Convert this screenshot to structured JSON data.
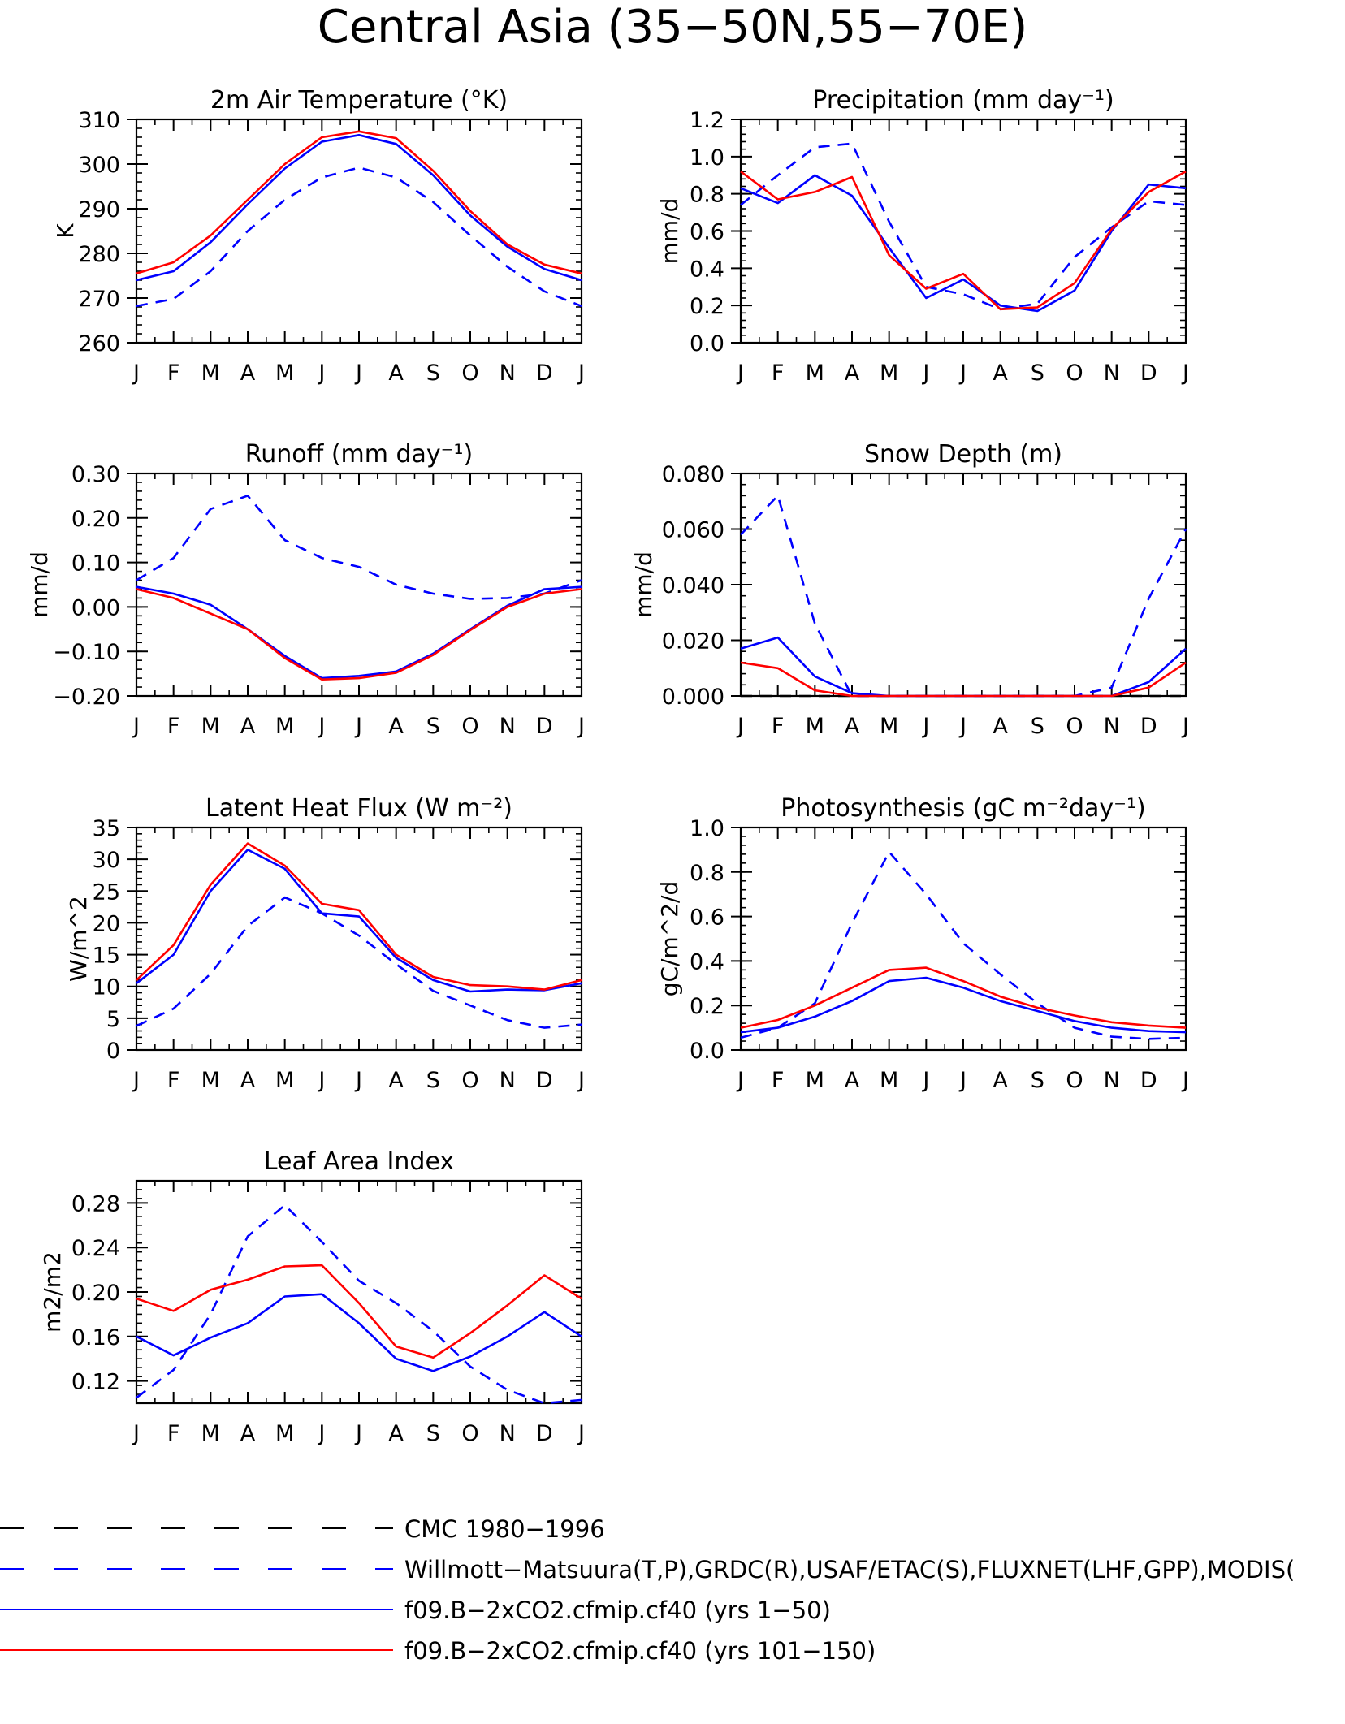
{
  "page": {
    "title": "Central Asia (35−50N,55−70E)"
  },
  "colors": {
    "axis": "#000000",
    "obs": "#0000ff",
    "sim1": "#0000ff",
    "sim2": "#ff0000",
    "cmc": "#000000"
  },
  "legend": {
    "entries": [
      {
        "label": "CMC 1980−1996",
        "color": "#000000",
        "dashed": true
      },
      {
        "label": "Willmott−Matsuura(T,P),GRDC(R),USAF/ETAC(S),FLUXNET(LHF,GPP),MODIS(",
        "color": "#0000ff",
        "dashed": true
      },
      {
        "label": "f09.B−2xCO2.cfmip.cf40 (yrs 1−50)",
        "color": "#0000ff",
        "dashed": false
      },
      {
        "label": "f09.B−2xCO2.cfmip.cf40 (yrs 101−150)",
        "color": "#ff0000",
        "dashed": false
      }
    ]
  },
  "chart_data": [
    {
      "id": "temp",
      "type": "line",
      "title": "2m Air Temperature (°K)",
      "ylabel": "K",
      "categories": [
        "J",
        "F",
        "M",
        "A",
        "M",
        "J",
        "J",
        "A",
        "S",
        "O",
        "N",
        "D",
        "J"
      ],
      "ylim": [
        260,
        310
      ],
      "yticks": [
        260,
        270,
        280,
        290,
        300,
        310
      ],
      "yticklabels": [
        "260",
        "270",
        "280",
        "290",
        "300",
        "310"
      ],
      "series": [
        {
          "key": "obs",
          "dashed": true,
          "color": "#0000ff",
          "values": [
            268.2,
            269.8,
            276,
            285,
            292,
            297,
            299.2,
            297,
            291.5,
            284,
            277,
            271.5,
            268.2
          ]
        },
        {
          "key": "sim1",
          "dashed": false,
          "color": "#0000ff",
          "values": [
            274,
            276,
            282.5,
            291,
            299,
            305,
            306.5,
            304.5,
            297.5,
            288.5,
            281.5,
            276.5,
            274
          ]
        },
        {
          "key": "sim2",
          "dashed": false,
          "color": "#ff0000",
          "values": [
            275.5,
            278,
            284,
            292,
            300,
            306,
            307.3,
            305.8,
            298.5,
            289.5,
            282,
            277.5,
            275.5
          ]
        }
      ]
    },
    {
      "id": "precip",
      "type": "line",
      "title": "Precipitation (mm day⁻¹)",
      "ylabel": "mm/d",
      "categories": [
        "J",
        "F",
        "M",
        "A",
        "M",
        "J",
        "J",
        "A",
        "S",
        "O",
        "N",
        "D",
        "J"
      ],
      "ylim": [
        0,
        1.2
      ],
      "yticks": [
        0,
        0.2,
        0.4,
        0.6,
        0.8,
        1.0,
        1.2
      ],
      "yticklabels": [
        "0.0",
        "0.2",
        "0.4",
        "0.6",
        "0.8",
        "1.0",
        "1.2"
      ],
      "series": [
        {
          "key": "obs",
          "dashed": true,
          "color": "#0000ff",
          "values": [
            0.74,
            0.9,
            1.05,
            1.07,
            0.65,
            0.3,
            0.26,
            0.18,
            0.21,
            0.46,
            0.62,
            0.76,
            0.74
          ]
        },
        {
          "key": "sim1",
          "dashed": false,
          "color": "#0000ff",
          "values": [
            0.83,
            0.75,
            0.9,
            0.79,
            0.51,
            0.24,
            0.34,
            0.2,
            0.17,
            0.28,
            0.6,
            0.85,
            0.83
          ]
        },
        {
          "key": "sim2",
          "dashed": false,
          "color": "#ff0000",
          "values": [
            0.92,
            0.77,
            0.81,
            0.89,
            0.47,
            0.29,
            0.37,
            0.18,
            0.19,
            0.32,
            0.61,
            0.81,
            0.92
          ]
        }
      ]
    },
    {
      "id": "runoff",
      "type": "line",
      "title": "Runoff (mm day⁻¹)",
      "ylabel": "mm/d",
      "categories": [
        "J",
        "F",
        "M",
        "A",
        "M",
        "J",
        "J",
        "A",
        "S",
        "O",
        "N",
        "D",
        "J"
      ],
      "ylim": [
        -0.2,
        0.3
      ],
      "yticks": [
        -0.2,
        -0.1,
        0,
        0.1,
        0.2,
        0.3
      ],
      "yticklabels": [
        "−0.20",
        "−0.10",
        "0.00",
        "0.10",
        "0.20",
        "0.30"
      ],
      "series": [
        {
          "key": "obs",
          "dashed": true,
          "color": "#0000ff",
          "values": [
            0.06,
            0.11,
            0.22,
            0.25,
            0.15,
            0.11,
            0.09,
            0.05,
            0.03,
            0.018,
            0.02,
            0.03,
            0.06
          ]
        },
        {
          "key": "sim1",
          "dashed": false,
          "color": "#0000ff",
          "values": [
            0.045,
            0.03,
            0.005,
            -0.05,
            -0.11,
            -0.16,
            -0.155,
            -0.145,
            -0.105,
            -0.05,
            0.003,
            0.04,
            0.045
          ]
        },
        {
          "key": "sim2",
          "dashed": false,
          "color": "#ff0000",
          "values": [
            0.04,
            0.02,
            -0.015,
            -0.05,
            -0.115,
            -0.163,
            -0.16,
            -0.148,
            -0.108,
            -0.052,
            0.0,
            0.03,
            0.04
          ]
        }
      ]
    },
    {
      "id": "snow",
      "type": "line",
      "title": "Snow Depth (m)",
      "ylabel": "mm/d",
      "categories": [
        "J",
        "F",
        "M",
        "A",
        "M",
        "J",
        "J",
        "A",
        "S",
        "O",
        "N",
        "D",
        "J"
      ],
      "ylim": [
        0,
        0.08
      ],
      "yticks": [
        0,
        0.02,
        0.04,
        0.06,
        0.08
      ],
      "yticklabels": [
        "0.000",
        "0.020",
        "0.040",
        "0.060",
        "0.080"
      ],
      "series": [
        {
          "key": "cmc",
          "dashed": true,
          "color": "#000000",
          "values": [
            0,
            0,
            0,
            0,
            0,
            0,
            0,
            0,
            0,
            0,
            0,
            0,
            0
          ]
        },
        {
          "key": "obs",
          "dashed": true,
          "color": "#0000ff",
          "values": [
            0.058,
            0.072,
            0.026,
            0.0,
            0,
            0,
            0,
            0,
            0,
            0,
            0.003,
            0.035,
            0.06
          ]
        },
        {
          "key": "sim1",
          "dashed": false,
          "color": "#0000ff",
          "values": [
            0.017,
            0.021,
            0.007,
            0.001,
            0,
            0,
            0,
            0,
            0,
            0,
            0.0,
            0.005,
            0.017
          ]
        },
        {
          "key": "sim2",
          "dashed": false,
          "color": "#ff0000",
          "values": [
            0.012,
            0.01,
            0.002,
            0.0,
            0,
            0,
            0,
            0,
            0,
            0,
            0.0,
            0.003,
            0.012
          ]
        }
      ]
    },
    {
      "id": "lhf",
      "type": "line",
      "title": "Latent Heat Flux (W m⁻²)",
      "ylabel": "W/m^2",
      "categories": [
        "J",
        "F",
        "M",
        "A",
        "M",
        "J",
        "J",
        "A",
        "S",
        "O",
        "N",
        "D",
        "J"
      ],
      "ylim": [
        0,
        35
      ],
      "yticks": [
        0,
        5,
        10,
        15,
        20,
        25,
        30,
        35
      ],
      "yticklabels": [
        "0",
        "5",
        "10",
        "15",
        "20",
        "25",
        "30",
        "35"
      ],
      "series": [
        {
          "key": "obs",
          "dashed": true,
          "color": "#0000ff",
          "values": [
            3.8,
            6.5,
            12,
            19.5,
            24,
            21.5,
            18,
            13.5,
            9.3,
            7,
            4.7,
            3.5,
            4
          ]
        },
        {
          "key": "sim1",
          "dashed": false,
          "color": "#0000ff",
          "values": [
            10.5,
            15,
            25,
            31.5,
            28.5,
            21.5,
            21,
            14.5,
            11,
            9.2,
            9.5,
            9.4,
            10.5
          ]
        },
        {
          "key": "sim2",
          "dashed": false,
          "color": "#ff0000",
          "values": [
            11,
            16.5,
            26,
            32.5,
            29,
            23,
            22,
            15,
            11.5,
            10.2,
            10,
            9.5,
            11
          ]
        }
      ]
    },
    {
      "id": "gpp",
      "type": "line",
      "title": "Photosynthesis (gC m⁻²day⁻¹)",
      "ylabel": "gC/m^2/d",
      "categories": [
        "J",
        "F",
        "M",
        "A",
        "M",
        "J",
        "J",
        "A",
        "S",
        "O",
        "N",
        "D",
        "J"
      ],
      "ylim": [
        0,
        1.0
      ],
      "yticks": [
        0,
        0.2,
        0.4,
        0.6,
        0.8,
        1.0
      ],
      "yticklabels": [
        "0.0",
        "0.2",
        "0.4",
        "0.6",
        "0.8",
        "1.0"
      ],
      "series": [
        {
          "key": "obs",
          "dashed": true,
          "color": "#0000ff",
          "values": [
            0.055,
            0.1,
            0.21,
            0.57,
            0.89,
            0.7,
            0.48,
            0.34,
            0.21,
            0.1,
            0.06,
            0.05,
            0.055
          ]
        },
        {
          "key": "sim1",
          "dashed": false,
          "color": "#0000ff",
          "values": [
            0.08,
            0.1,
            0.15,
            0.22,
            0.31,
            0.325,
            0.28,
            0.22,
            0.175,
            0.13,
            0.1,
            0.085,
            0.08
          ]
        },
        {
          "key": "sim2",
          "dashed": false,
          "color": "#ff0000",
          "values": [
            0.1,
            0.135,
            0.2,
            0.28,
            0.36,
            0.37,
            0.31,
            0.24,
            0.19,
            0.155,
            0.125,
            0.11,
            0.1
          ]
        }
      ]
    },
    {
      "id": "lai",
      "type": "line",
      "title": "Leaf Area Index",
      "ylabel": "m2/m2",
      "categories": [
        "J",
        "F",
        "M",
        "A",
        "M",
        "J",
        "J",
        "A",
        "S",
        "O",
        "N",
        "D",
        "J"
      ],
      "ylim": [
        0.1,
        0.3
      ],
      "yticks": [
        0.12,
        0.16,
        0.2,
        0.24,
        0.28
      ],
      "yticklabels": [
        "0.12",
        "0.16",
        "0.20",
        "0.24",
        "0.28"
      ],
      "series": [
        {
          "key": "obs",
          "dashed": true,
          "color": "#0000ff",
          "values": [
            0.105,
            0.13,
            0.18,
            0.25,
            0.278,
            0.245,
            0.21,
            0.19,
            0.165,
            0.133,
            0.112,
            0.1,
            0.103
          ]
        },
        {
          "key": "sim1",
          "dashed": false,
          "color": "#0000ff",
          "values": [
            0.16,
            0.143,
            0.159,
            0.172,
            0.196,
            0.198,
            0.172,
            0.14,
            0.129,
            0.142,
            0.16,
            0.182,
            0.16
          ]
        },
        {
          "key": "sim2",
          "dashed": false,
          "color": "#ff0000",
          "values": [
            0.194,
            0.183,
            0.202,
            0.211,
            0.223,
            0.224,
            0.19,
            0.151,
            0.141,
            0.163,
            0.188,
            0.215,
            0.194
          ]
        }
      ]
    }
  ]
}
